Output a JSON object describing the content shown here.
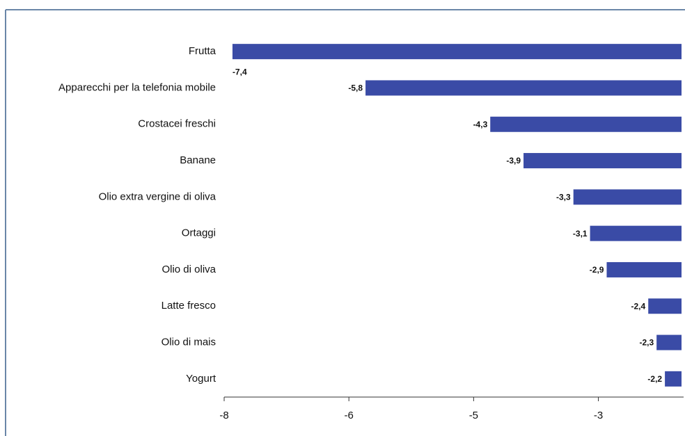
{
  "chart_data": {
    "type": "bar",
    "orientation": "horizontal",
    "categories": [
      "Frutta",
      "Apparecchi per la telefonia mobile",
      "Crostacei freschi",
      "Banane",
      "Olio extra vergine di oliva",
      "Ortaggi",
      "Olio di oliva",
      "Latte fresco",
      "Olio di mais",
      "Yogurt"
    ],
    "values": [
      -7.4,
      -5.8,
      -4.3,
      -3.9,
      -3.3,
      -3.1,
      -2.9,
      -2.4,
      -2.3,
      -2.2
    ],
    "value_labels": [
      "-7,4",
      "-5,8",
      "-4,3",
      "-3,9",
      "-3,3",
      "-3,1",
      "-2,9",
      "-2,4",
      "-2,3",
      "-2,2"
    ],
    "color": "#3a4ba6",
    "xlim": [
      -7.5,
      -2
    ],
    "xticks": [
      {
        "value": -7.5,
        "label": "-8"
      },
      -6,
      {
        "value": -4.5,
        "label": "-5"
      },
      -3
    ]
  }
}
